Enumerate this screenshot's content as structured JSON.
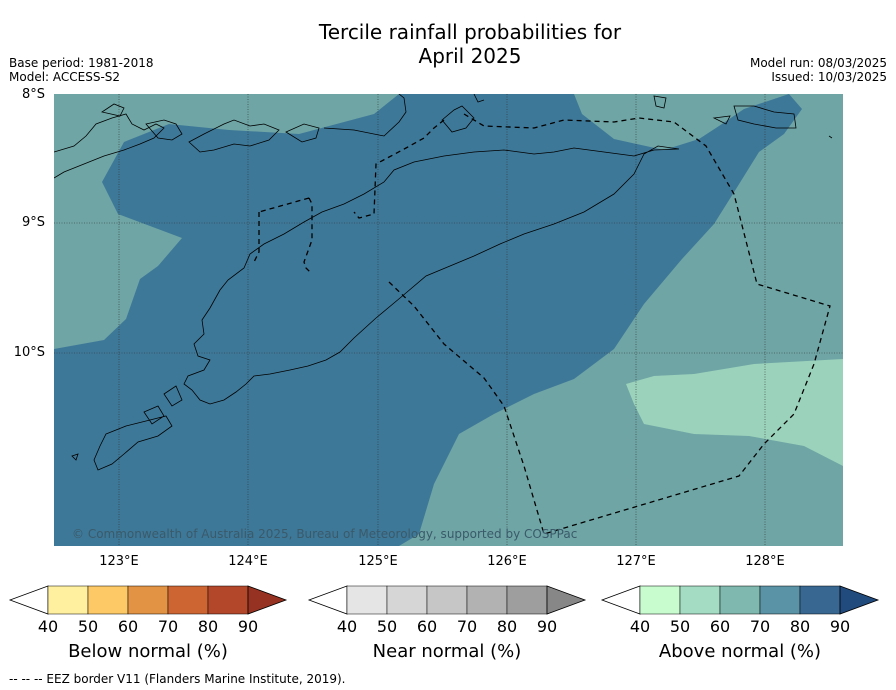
{
  "title_line1": "Tercile rainfall probabilities for",
  "title_line2": "April 2025",
  "base_period": "Base period: 1981-2018",
  "model": "Model: ACCESS-S2",
  "model_run": "Model run: 08/03/2025",
  "issued": "Issued: 10/03/2025",
  "lat_labels": [
    "8°S",
    "9°S",
    "10°S"
  ],
  "lon_labels": [
    "123°E",
    "124°E",
    "125°E",
    "126°E",
    "127°E",
    "128°E"
  ],
  "copyright": "© Commonwealth of Australia 2025, Bureau of Meteorology, supported by COSPPac",
  "colorbars": [
    {
      "label": "Below normal (%)",
      "ticks": [
        "40",
        "50",
        "60",
        "70",
        "80",
        "90"
      ],
      "colors": [
        "#fff0a0",
        "#fcc966",
        "#e39344",
        "#cd6533",
        "#b2472a",
        "#963221"
      ]
    },
    {
      "label": "Near normal (%)",
      "ticks": [
        "40",
        "50",
        "60",
        "70",
        "80",
        "90"
      ],
      "colors": [
        "#e5e5e5",
        "#d6d6d6",
        "#c6c6c6",
        "#b2b2b2",
        "#9e9e9e",
        "#878787"
      ]
    },
    {
      "label": "Above normal (%)",
      "ticks": [
        "40",
        "50",
        "60",
        "70",
        "80",
        "90"
      ],
      "colors": [
        "#c8fccf",
        "#a3dcc2",
        "#7eb8ae",
        "#5a93a5",
        "#386892",
        "#214a7d"
      ]
    }
  ],
  "map_colors": {
    "above_60_70": "#6fa5a5",
    "above_70_80": "#3e7898",
    "above_50_60": "#9bd2bb"
  },
  "footnote": "--  --  -- EEZ border V11 (Flanders Marine Institute, 2019)."
}
